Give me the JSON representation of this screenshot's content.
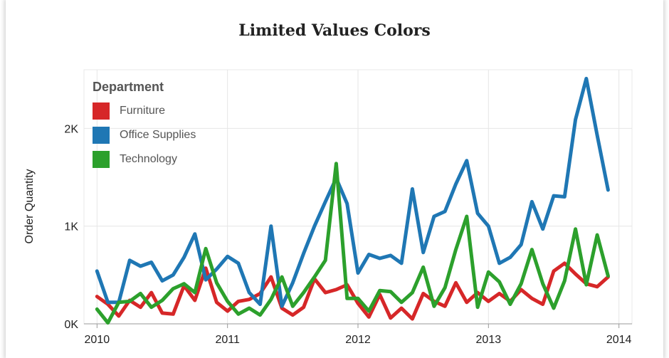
{
  "chart_data": {
    "type": "line",
    "title": "Limited Values Colors",
    "xlabel": "",
    "ylabel": "Order Quantity",
    "ylim": [
      0,
      2600
    ],
    "xlim": [
      2009.9,
      2014.1
    ],
    "y_ticks": [
      0,
      1000,
      2000
    ],
    "y_tick_labels": [
      "0K",
      "1K",
      "2K"
    ],
    "x_ticks": [
      2010,
      2011,
      2012,
      2013,
      2014
    ],
    "x_tick_labels": [
      "2010",
      "2011",
      "2012",
      "2013",
      "2014"
    ],
    "grid": true,
    "legend": {
      "title": "Department",
      "placement": "top-left"
    },
    "series": [
      {
        "name": "Furniture",
        "color": "#d62728",
        "values": [
          280,
          200,
          80,
          240,
          170,
          320,
          110,
          100,
          390,
          240,
          570,
          220,
          130,
          230,
          250,
          310,
          480,
          160,
          90,
          170,
          460,
          320,
          350,
          400,
          210,
          70,
          300,
          60,
          160,
          50,
          310,
          230,
          180,
          420,
          220,
          320,
          230,
          310,
          230,
          350,
          260,
          200,
          540,
          620,
          510,
          410,
          380,
          480
        ]
      },
      {
        "name": "Office Supplies",
        "color": "#1f77b4",
        "values": [
          540,
          220,
          220,
          650,
          590,
          630,
          440,
          500,
          680,
          920,
          450,
          560,
          690,
          620,
          320,
          200,
          1000,
          180,
          420,
          720,
          1000,
          1250,
          1490,
          1230,
          520,
          710,
          670,
          700,
          620,
          1380,
          730,
          1100,
          1150,
          1430,
          1670,
          1130,
          1000,
          620,
          680,
          810,
          1250,
          970,
          1310,
          1300,
          2090,
          2510,
          1930,
          1370
        ]
      },
      {
        "name": "Technology",
        "color": "#2ca02c",
        "values": [
          150,
          10,
          220,
          230,
          310,
          170,
          240,
          360,
          410,
          320,
          770,
          420,
          230,
          100,
          160,
          90,
          250,
          480,
          180,
          320,
          480,
          650,
          1640,
          260,
          260,
          130,
          340,
          330,
          220,
          320,
          580,
          180,
          370,
          760,
          1100,
          170,
          530,
          430,
          200,
          410,
          760,
          410,
          160,
          440,
          970,
          400,
          910,
          490
        ]
      }
    ]
  }
}
